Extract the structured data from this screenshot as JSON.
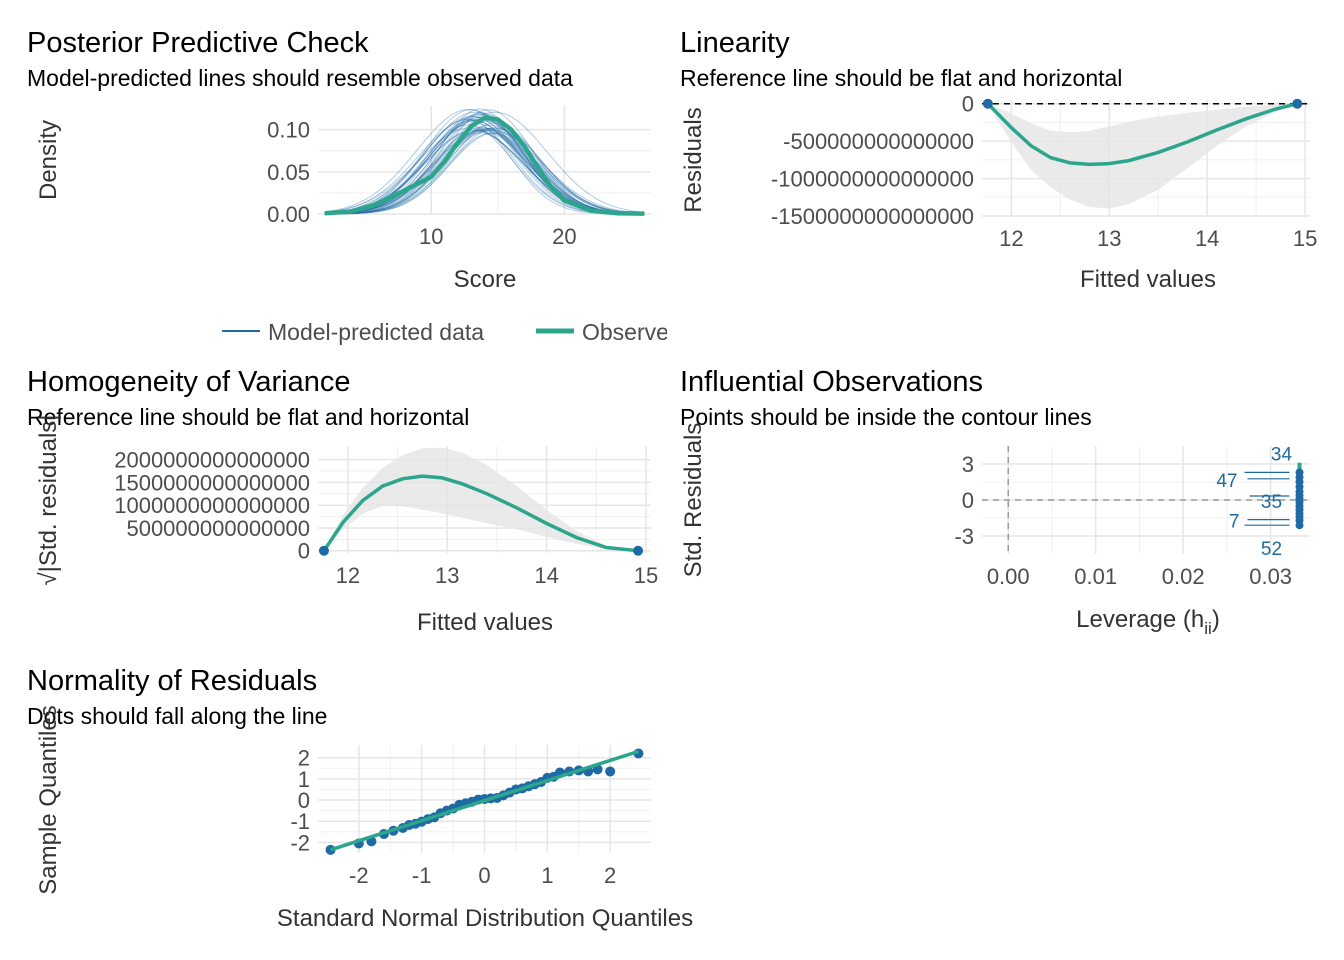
{
  "colors": {
    "observed": "#2ca58d",
    "model": "#1f6aa5",
    "band": "#e5e5e5",
    "grid": "#e6e6e6",
    "text": "#000000"
  },
  "chart_data": [
    {
      "id": "ppc",
      "type": "line",
      "title": "Posterior Predictive Check",
      "subtitle": "Model-predicted lines should resemble observed data",
      "xlabel": "Score",
      "ylabel": "Density",
      "xlim": [
        1.5,
        26.5
      ],
      "ylim": [
        0,
        0.128
      ],
      "x_ticks": [
        10,
        20
      ],
      "y_ticks": [
        0.0,
        0.05,
        0.1
      ],
      "y_tick_labels": [
        "0.00",
        "0.05",
        "0.10"
      ],
      "grid": true,
      "observed": {
        "x": [
          2,
          4,
          6,
          8,
          10,
          11,
          12,
          13,
          14,
          15,
          16,
          17,
          18,
          19,
          20,
          22,
          24,
          26
        ],
        "y": [
          0.001,
          0.003,
          0.012,
          0.028,
          0.044,
          0.062,
          0.085,
          0.104,
          0.114,
          0.112,
          0.1,
          0.08,
          0.055,
          0.032,
          0.016,
          0.004,
          0.001,
          0.0005
        ]
      },
      "model_draws": {
        "count": 40,
        "mean": 13.8,
        "sd": 3.5,
        "peak_min": 0.095,
        "peak_max": 0.125
      },
      "legend": {
        "position": "bottom",
        "items": [
          {
            "label": "Model-predicted data",
            "color": "#1f6aa5"
          },
          {
            "label": "Observed data",
            "color": "#2ca58d"
          }
        ]
      }
    },
    {
      "id": "linearity",
      "type": "line",
      "title": "Linearity",
      "subtitle": "Reference line should be flat and horizontal",
      "xlabel": "Fitted values",
      "ylabel": "Residuals",
      "xlim": [
        11.7,
        15.05
      ],
      "ylim": [
        -1500000000000000,
        50000000000000
      ],
      "x_ticks": [
        12,
        13,
        14,
        15
      ],
      "y_ticks": [
        0,
        -500000000000000,
        -1000000000000000,
        -1500000000000000
      ],
      "y_tick_labels": [
        "0",
        "-500000000000000",
        "-1000000000000000",
        "-1500000000000000"
      ],
      "reference_line": 0,
      "points": {
        "x": [
          11.76,
          14.92
        ],
        "y": [
          0,
          0
        ]
      },
      "fit": {
        "x": [
          11.76,
          12.0,
          12.2,
          12.4,
          12.6,
          12.8,
          13.0,
          13.2,
          13.5,
          13.8,
          14.1,
          14.4,
          14.7,
          14.92
        ],
        "y": [
          0,
          -320000000000000,
          -560000000000000,
          -720000000000000,
          -790000000000000,
          -810000000000000,
          -800000000000000,
          -760000000000000,
          -650000000000000,
          -510000000000000,
          -350000000000000,
          -200000000000000,
          -70000000000000,
          0
        ]
      },
      "band": {
        "x": [
          11.76,
          12.0,
          12.2,
          12.4,
          12.6,
          12.8,
          13.0,
          13.2,
          13.5,
          13.8,
          14.1,
          14.4,
          14.7,
          14.92
        ],
        "lower": [
          0,
          -520000000000000,
          -880000000000000,
          -1120000000000000,
          -1280000000000000,
          -1380000000000000,
          -1400000000000000,
          -1340000000000000,
          -1150000000000000,
          -860000000000000,
          -560000000000000,
          -300000000000000,
          -110000000000000,
          0
        ],
        "upper": [
          0,
          -130000000000000,
          -260000000000000,
          -360000000000000,
          -380000000000000,
          -360000000000000,
          -300000000000000,
          -240000000000000,
          -170000000000000,
          -120000000000000,
          -80000000000000,
          -40000000000000,
          -10000000000000,
          0
        ]
      }
    },
    {
      "id": "homogeneity",
      "type": "line",
      "title": "Homogeneity of Variance",
      "subtitle": "Reference line should be flat and horizontal",
      "xlabel": "Fitted values",
      "ylabel": "√|Std. residuals|",
      "xlim": [
        11.7,
        15.05
      ],
      "ylim": [
        -50000000000000,
        2300000000000000
      ],
      "x_ticks": [
        12,
        13,
        14,
        15
      ],
      "y_ticks": [
        0,
        500000000000000,
        1000000000000000,
        1500000000000000,
        2000000000000000
      ],
      "y_tick_labels": [
        "0",
        "500000000000000",
        "1000000000000000",
        "1500000000000000",
        "2000000000000000"
      ],
      "points": {
        "x": [
          11.76,
          14.92
        ],
        "y": [
          0,
          0
        ]
      },
      "fit": {
        "x": [
          11.76,
          11.95,
          12.15,
          12.35,
          12.55,
          12.75,
          12.95,
          13.15,
          13.4,
          13.7,
          14.0,
          14.3,
          14.6,
          14.92
        ],
        "y": [
          0,
          620000000000000,
          1100000000000000,
          1420000000000000,
          1580000000000000,
          1640000000000000,
          1600000000000000,
          1470000000000000,
          1250000000000000,
          940000000000000,
          600000000000000,
          290000000000000,
          70000000000000,
          0
        ]
      },
      "band": {
        "x": [
          11.76,
          11.95,
          12.15,
          12.35,
          12.55,
          12.75,
          12.95,
          13.15,
          13.4,
          13.7,
          14.0,
          14.3,
          14.6,
          14.92
        ],
        "lower": [
          0,
          470000000000000,
          810000000000000,
          980000000000000,
          980000000000000,
          900000000000000,
          820000000000000,
          720000000000000,
          600000000000000,
          470000000000000,
          300000000000000,
          150000000000000,
          40000000000000,
          0
        ],
        "upper": [
          0,
          780000000000000,
          1380000000000000,
          1820000000000000,
          2100000000000000,
          2250000000000000,
          2260000000000000,
          2150000000000000,
          1880000000000000,
          1420000000000000,
          900000000000000,
          430000000000000,
          110000000000000,
          0
        ]
      }
    },
    {
      "id": "influence",
      "type": "scatter",
      "title": "Influential Observations",
      "subtitle": "Points should be inside the contour lines",
      "xlabel": "Leverage (h",
      "xlabel_sub": "ii",
      "xlabel_end": ")",
      "ylabel": "Std. Residuals",
      "xlim": [
        -0.003,
        0.0345
      ],
      "ylim": [
        -4.5,
        4.5
      ],
      "x_ticks": [
        0.0,
        0.01,
        0.02,
        0.03
      ],
      "x_tick_labels": [
        "0.00",
        "0.01",
        "0.02",
        "0.03"
      ],
      "y_ticks": [
        -3,
        0,
        3
      ],
      "y_tick_labels": [
        "-3",
        "0",
        "3"
      ],
      "points": {
        "x": [
          0.0333,
          0.0333,
          0.0333,
          0.0333,
          0.0333,
          0.0333,
          0.0333,
          0.0333,
          0.0333,
          0.0333,
          0.0333,
          0.0333,
          0.0333,
          0.0333
        ],
        "y": [
          2.3,
          1.9,
          1.5,
          1.1,
          0.7,
          0.4,
          0.1,
          -0.2,
          -0.5,
          -0.8,
          -1.1,
          -1.4,
          -1.7,
          -2.1
        ]
      },
      "labels": [
        {
          "text": "34",
          "x": 0.0333,
          "y": 2.3
        },
        {
          "text": "47",
          "x": 0.0333,
          "y": 1.6
        },
        {
          "text": "35",
          "x": 0.0333,
          "y": 0.0
        },
        {
          "text": "7",
          "x": 0.0333,
          "y": -1.8
        },
        {
          "text": "52",
          "x": 0.0333,
          "y": -2.1
        }
      ]
    },
    {
      "id": "normality",
      "type": "scatter",
      "title": "Normality of Residuals",
      "subtitle": "Dots should fall along the line",
      "xlabel": "Standard Normal Distribution Quantiles",
      "ylabel": "Sample Quantiles",
      "xlim": [
        -2.65,
        2.65
      ],
      "ylim": [
        -2.5,
        2.6
      ],
      "x_ticks": [
        -2,
        -1,
        0,
        1,
        2
      ],
      "y_ticks": [
        -2,
        -1,
        0,
        1,
        2
      ],
      "reference": {
        "x": [
          -2.45,
          2.45
        ],
        "y": [
          -2.35,
          2.3
        ]
      },
      "points": {
        "x": [
          -2.45,
          -2.0,
          -1.8,
          -1.6,
          -1.45,
          -1.3,
          -1.2,
          -1.1,
          -1.0,
          -0.9,
          -0.8,
          -0.7,
          -0.6,
          -0.5,
          -0.4,
          -0.3,
          -0.2,
          -0.1,
          0.0,
          0.1,
          0.2,
          0.3,
          0.4,
          0.5,
          0.6,
          0.7,
          0.8,
          0.9,
          1.0,
          1.1,
          1.2,
          1.35,
          1.5,
          1.65,
          1.8,
          2.0,
          2.45
        ],
        "y": [
          -2.35,
          -2.05,
          -1.95,
          -1.6,
          -1.45,
          -1.32,
          -1.18,
          -1.12,
          -1.02,
          -0.9,
          -0.82,
          -0.62,
          -0.5,
          -0.4,
          -0.22,
          -0.15,
          -0.08,
          0.02,
          0.05,
          0.08,
          0.1,
          0.22,
          0.35,
          0.5,
          0.55,
          0.65,
          0.75,
          0.85,
          1.05,
          1.1,
          1.3,
          1.35,
          1.4,
          1.35,
          1.45,
          1.35,
          2.2
        ]
      }
    }
  ]
}
